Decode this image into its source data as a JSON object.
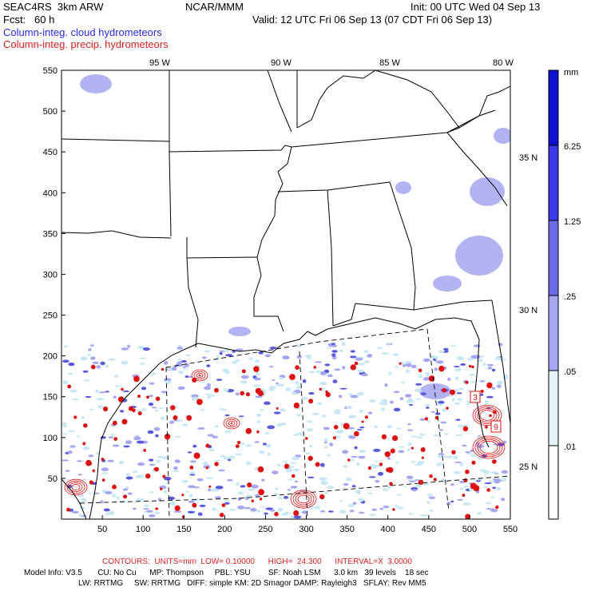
{
  "header": {
    "model": "SEAC4RS  3km ARW",
    "org": "NCAR/MMM",
    "init": "Init: 00 UTC Wed 04 Sep 13",
    "fcst": "Fcst:   60 h",
    "valid": "Valid: 12 UTC Fri 06 Sep 13 (07 CDT Fri 06 Sep 13)",
    "line_cloud": "Column-integ. cloud hydrometeors",
    "line_precip": "Column-integ. precip. hydrometeors"
  },
  "map": {
    "lon_labels": [
      "95 W",
      "90 W",
      "85 W",
      "80 W"
    ],
    "lat_labels": [
      "35 N",
      "30 N",
      "25 N"
    ],
    "x_ticks": [
      "50",
      "100",
      "150",
      "200",
      "250",
      "300",
      "350",
      "400",
      "450",
      "500",
      "550"
    ],
    "y_ticks": [
      "550",
      "500",
      "450",
      "400",
      "350",
      "300",
      "250",
      "200",
      "150",
      "100",
      "50"
    ],
    "contour_labels": [
      "3",
      "9"
    ]
  },
  "colorbar": {
    "unit": "mm",
    "labels": [
      "6.25",
      "1.25",
      ".25",
      ".05",
      ".01"
    ],
    "colors": [
      "#1010d0",
      "#3a3ae6",
      "#6a6ae8",
      "#a6a6f2",
      "#e2f4f8",
      "#ffffff"
    ]
  },
  "footer": {
    "contours": "CONTOURS:  UNITS=mm  LOW= 0.10000      HIGH=  24.300      INTERVAL=X  3.0000",
    "model_info": "Model Info: V3.5       CU: No Cu      MP: Thompson     PBL: YSU        SF: Noah LSM      3.0 km   39 levels    18 sec",
    "model_info2": "LW: RRTMG     SW: RRTMG   DIFF: simple KM: 2D Smagor DAMP: Rayleigh3   SFLAY: Rev MM5"
  },
  "colors": {
    "cloud_light": "#c8e8f4",
    "cloud_mid": "#a6a6f2",
    "cloud_dark": "#5a5ae0",
    "precip": "#e01010"
  }
}
